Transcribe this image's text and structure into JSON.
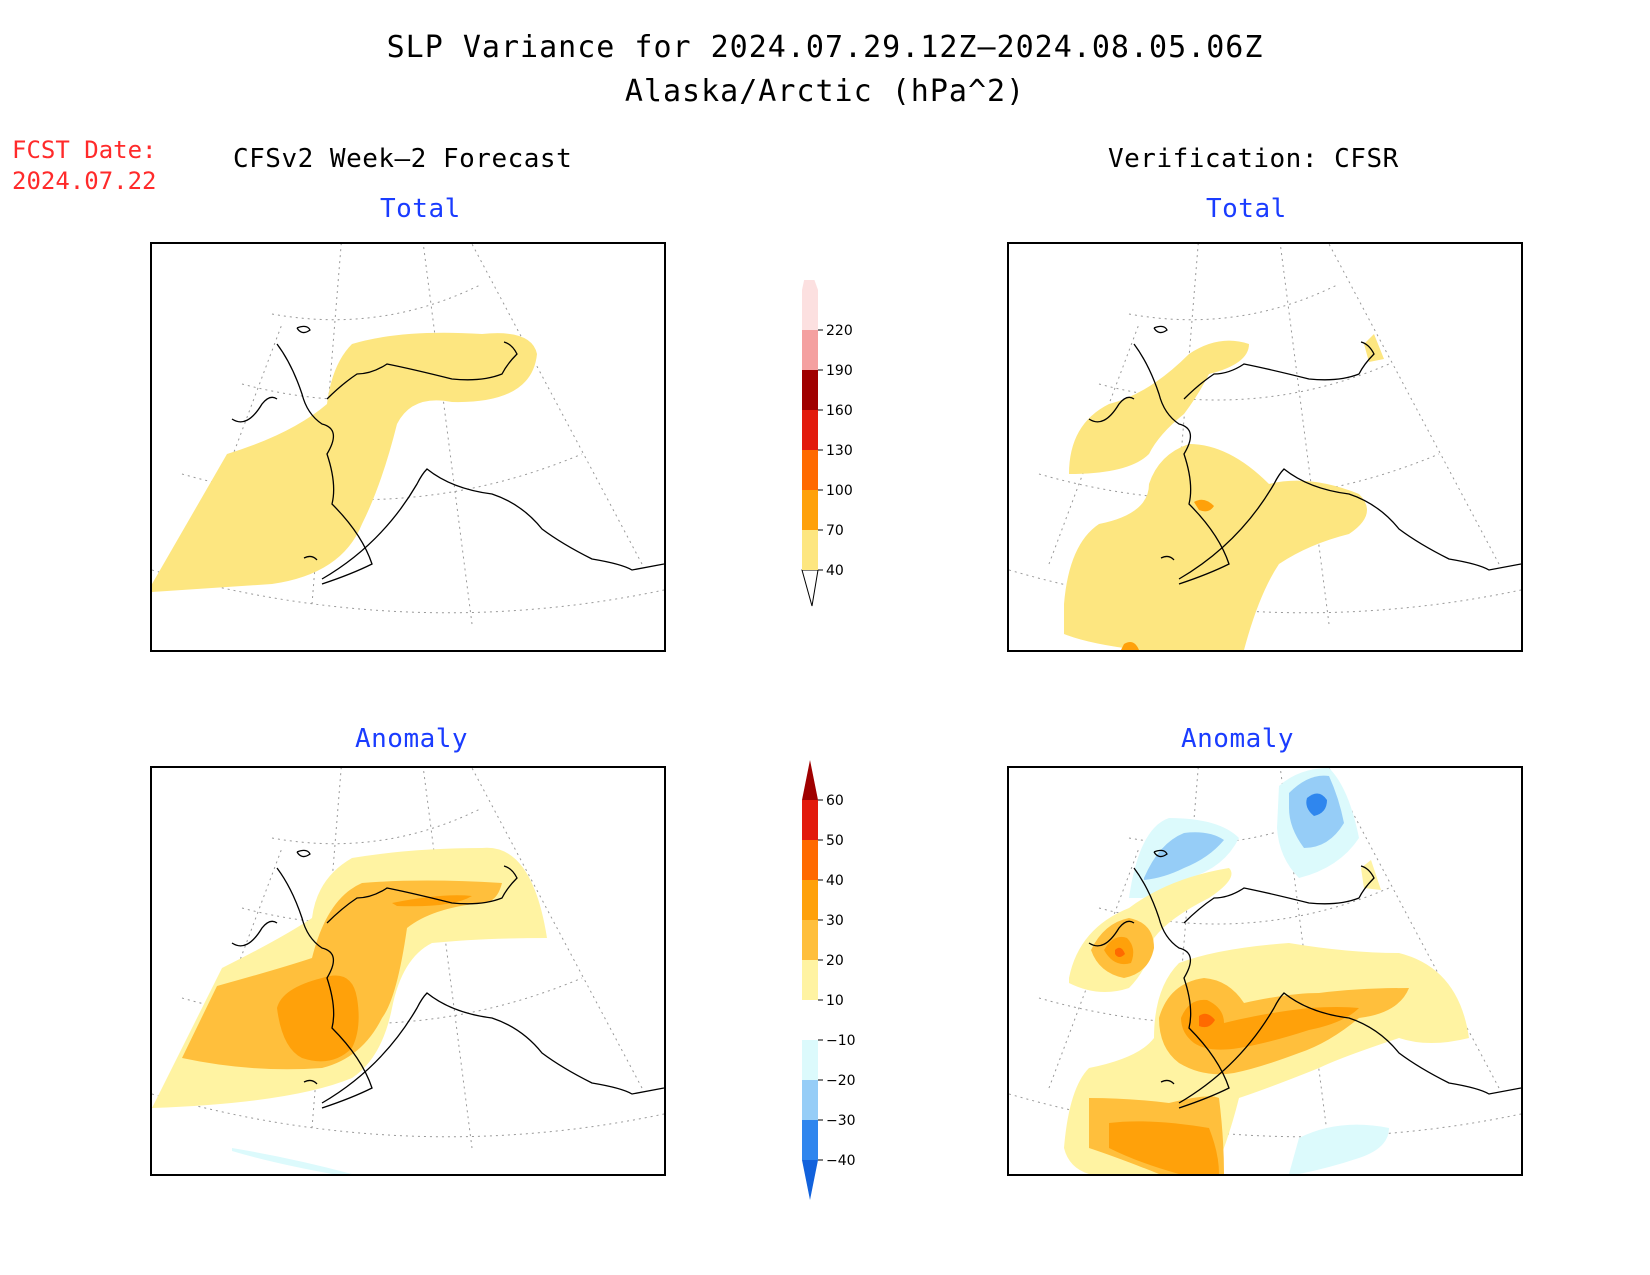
{
  "title_line1": "SLP Variance for 2024.07.29.12Z–2024.08.05.06Z",
  "title_line2": "Alaska/Arctic (hPa^2)",
  "fcst_label": "FCST Date:",
  "fcst_date": "2024.07.22",
  "left_header": "CFSv2 Week–2 Forecast",
  "right_header": "Verification: CFSR",
  "panels": {
    "top_left": "Total",
    "top_right": "Total",
    "bottom_left": "Anomaly",
    "bottom_right": "Anomaly"
  },
  "colorbar_total": {
    "levels": [
      "40",
      "70",
      "100",
      "130",
      "160",
      "190",
      "220"
    ],
    "colors": [
      "#ffffff",
      "#fde680",
      "#ffa10a",
      "#ff6a00",
      "#e21a0c",
      "#a00000",
      "#f4a0a0",
      "#fce0e0"
    ]
  },
  "colorbar_anomaly": {
    "levels": [
      "−40",
      "−30",
      "−20",
      "−10",
      "10",
      "20",
      "30",
      "40",
      "50",
      "60"
    ],
    "colors": [
      "#1262dc",
      "#2f86ee",
      "#96cdf7",
      "#dcfafc",
      "#ffffff",
      "#fff3a2",
      "#ffbf3c",
      "#ffa10a",
      "#ff6a00",
      "#e21a0c",
      "#a00000"
    ]
  },
  "legend_colors": {
    "light_yellow": "#fde680",
    "orange_light": "#ffbf3c",
    "orange": "#ffa10a",
    "red_orange": "#ff6a00",
    "red": "#e21a0c",
    "pale_cyan": "#dcfafc",
    "light_blue": "#96cdf7",
    "blue": "#2f86ee"
  }
}
